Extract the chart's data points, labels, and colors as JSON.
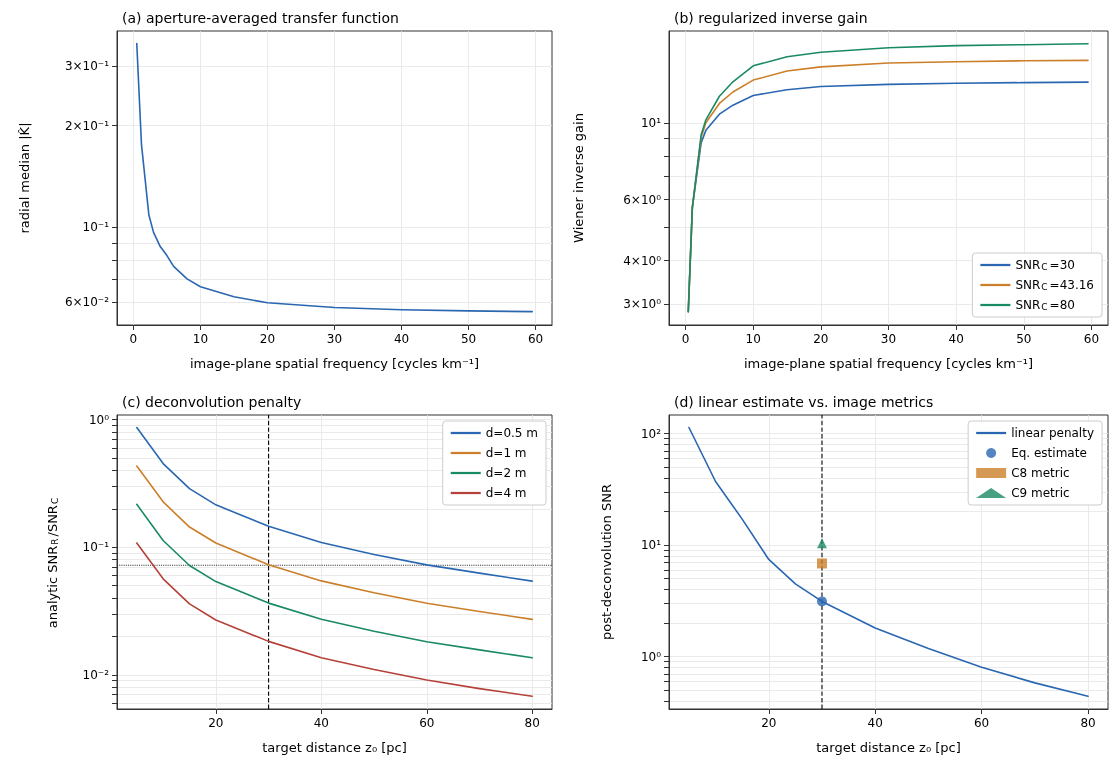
{
  "chart_data": [
    {
      "type": "line",
      "title": "(a) aperture-averaged transfer function",
      "xlabel": "image-plane spatial frequency [cycles km⁻¹]",
      "ylabel": "radial median |K̂|",
      "log": "y",
      "grid": true,
      "xlim": [
        -2.45,
        62.45
      ],
      "xticks": [
        0,
        10,
        20,
        30,
        40,
        50,
        60
      ],
      "ylim": [
        0.0514,
        0.381
      ],
      "yticks": [
        {
          "value": 0.06,
          "label": "6×10⁻²"
        },
        {
          "value": 0.07,
          "label": null
        },
        {
          "value": 0.08,
          "label": null
        },
        {
          "value": 0.09,
          "label": null
        },
        {
          "value": 0.1,
          "label": "10⁻¹"
        },
        {
          "value": 0.2,
          "label": "2×10⁻¹"
        },
        {
          "value": 0.3,
          "label": "3×10⁻¹"
        }
      ],
      "series": [
        {
          "color": "#2a67b1",
          "x": [
            0.5,
            1.2,
            2.3,
            3,
            4,
            5,
            6,
            8,
            10,
            15,
            20,
            30,
            40,
            50,
            59.5
          ],
          "values": [
            0.35,
            0.176,
            0.109,
            0.0966,
            0.0877,
            0.0825,
            0.0766,
            0.0704,
            0.0667,
            0.0623,
            0.0598,
            0.0579,
            0.057,
            0.0566,
            0.0563
          ]
        }
      ]
    },
    {
      "type": "line",
      "title": "(b) regularized inverse gain",
      "xlabel": "image-plane spatial frequency [cycles km⁻¹]",
      "ylabel": "Wiener inverse gain",
      "log": "y",
      "grid": true,
      "legend": "bottom right",
      "xlim": [
        -2.45,
        62.45
      ],
      "xticks": [
        0,
        10,
        20,
        30,
        40,
        50,
        60
      ],
      "ylim": [
        2.61,
        18.4
      ],
      "yticks": [
        {
          "value": 3,
          "label": "3×10⁰"
        },
        {
          "value": 4,
          "label": "4×10⁰"
        },
        {
          "value": 5,
          "label": null
        },
        {
          "value": 6,
          "label": "6×10⁰"
        },
        {
          "value": 7,
          "label": null
        },
        {
          "value": 8,
          "label": null
        },
        {
          "value": 9,
          "label": null
        },
        {
          "value": 10,
          "label": "10¹"
        }
      ],
      "series": [
        {
          "name": "SNR$_{C}$=30",
          "color": "#2a67b1",
          "x": [
            0.4,
            1,
            2.3,
            3,
            5,
            7,
            10,
            15,
            20,
            30,
            40,
            50,
            59.5
          ],
          "values": [
            2.85,
            5.69,
            8.75,
            9.51,
            10.59,
            11.24,
            11.99,
            12.45,
            12.73,
            12.91,
            13.0,
            13.06,
            13.1
          ]
        },
        {
          "name": "SNR$_{C}$=43.16",
          "color": "#cc7f29",
          "x": [
            0.4,
            1,
            2.3,
            3,
            5,
            7,
            10,
            15,
            20,
            30,
            40,
            50,
            59.5
          ],
          "values": [
            2.85,
            5.69,
            9.07,
            10.0,
            11.37,
            12.27,
            13.28,
            14.1,
            14.5,
            14.87,
            15.0,
            15.1,
            15.14
          ]
        },
        {
          "name": "SNR$_{C}$=80",
          "color": "#1a8a64",
          "x": [
            0.4,
            1,
            2.3,
            3,
            5,
            7,
            10,
            15,
            20,
            30,
            40,
            50,
            59.5
          ],
          "values": [
            2.85,
            5.69,
            9.22,
            10.2,
            11.93,
            13.13,
            14.6,
            15.5,
            15.97,
            16.47,
            16.7,
            16.8,
            16.9
          ]
        }
      ]
    },
    {
      "type": "line",
      "title": "(c) deconvolution penalty",
      "xlabel": "target distance z₀ [pc]",
      "ylabel": "analytic SNR$_{R}$/SNR$_{C}$",
      "log": "y",
      "grid": true,
      "legend": "top right",
      "xlim": [
        1.25,
        83.75
      ],
      "xticks": [
        20,
        40,
        60,
        80
      ],
      "ylim": [
        0.0054,
        1.088
      ],
      "yticks": [
        {
          "value": 0.006,
          "label": null
        },
        {
          "value": 0.007,
          "label": null
        },
        {
          "value": 0.008,
          "label": null
        },
        {
          "value": 0.009,
          "label": null
        },
        {
          "value": 0.01,
          "label": "10⁻²"
        },
        {
          "value": 0.02,
          "label": null
        },
        {
          "value": 0.03,
          "label": null
        },
        {
          "value": 0.04,
          "label": null
        },
        {
          "value": 0.05,
          "label": null
        },
        {
          "value": 0.06,
          "label": null
        },
        {
          "value": 0.07,
          "label": null
        },
        {
          "value": 0.08,
          "label": null
        },
        {
          "value": 0.09,
          "label": null
        },
        {
          "value": 0.1,
          "label": "10⁻¹"
        },
        {
          "value": 0.2,
          "label": null
        },
        {
          "value": 0.3,
          "label": null
        },
        {
          "value": 0.4,
          "label": null
        },
        {
          "value": 0.5,
          "label": null
        },
        {
          "value": 0.6,
          "label": null
        },
        {
          "value": 0.7,
          "label": null
        },
        {
          "value": 0.8,
          "label": null
        },
        {
          "value": 0.9,
          "label": null
        },
        {
          "value": 1,
          "label": "10⁰"
        }
      ],
      "ref_lines": [
        {
          "axis": "x",
          "value": 30,
          "line_style": "dashed",
          "color": "#000000"
        },
        {
          "axis": "y",
          "value": 0.0723,
          "line_style": "dotted",
          "color": "#333333"
        }
      ],
      "series": [
        {
          "name": "d=0.5 m",
          "color": "#2a67b1",
          "x": [
            5,
            10,
            15,
            20,
            30,
            40,
            50,
            60,
            70,
            80
          ],
          "values": [
            0.867,
            0.453,
            0.288,
            0.215,
            0.146,
            0.109,
            0.0879,
            0.0728,
            0.0627,
            0.0543
          ]
        },
        {
          "name": "d=1 m",
          "color": "#cc7f29",
          "x": [
            5,
            10,
            15,
            20,
            30,
            40,
            50,
            60,
            70,
            80
          ],
          "values": [
            0.433,
            0.227,
            0.144,
            0.108,
            0.073,
            0.0545,
            0.044,
            0.0364,
            0.0314,
            0.0272
          ]
        },
        {
          "name": "d=2 m",
          "color": "#1a8a64",
          "x": [
            5,
            10,
            15,
            20,
            30,
            40,
            50,
            60,
            70,
            80
          ],
          "values": [
            0.217,
            0.113,
            0.072,
            0.0538,
            0.0365,
            0.0273,
            0.022,
            0.0182,
            0.0157,
            0.0136
          ]
        },
        {
          "name": "d=4 m",
          "color": "#b5423a",
          "x": [
            5,
            10,
            15,
            20,
            30,
            40,
            50,
            60,
            70,
            80
          ],
          "values": [
            0.108,
            0.0566,
            0.036,
            0.0269,
            0.0183,
            0.0136,
            0.011,
            0.0091,
            0.0078,
            0.0068
          ]
        }
      ]
    },
    {
      "type": "line",
      "title": "(d) linear estimate vs. image metrics",
      "xlabel": "target distance z₀ [pc]",
      "ylabel": "post-deconvolution SNR",
      "log": "y",
      "grid": true,
      "legend": "top right",
      "xlim": [
        1.25,
        83.75
      ],
      "xticks": [
        20,
        40,
        60,
        80
      ],
      "ylim": [
        0.338,
        147
      ],
      "yticks": [
        {
          "value": 0.4,
          "label": null
        },
        {
          "value": 0.5,
          "label": null
        },
        {
          "value": 0.6,
          "label": null
        },
        {
          "value": 0.7,
          "label": null
        },
        {
          "value": 0.8,
          "label": null
        },
        {
          "value": 0.9,
          "label": null
        },
        {
          "value": 1,
          "label": "10⁰"
        },
        {
          "value": 2,
          "label": null
        },
        {
          "value": 3,
          "label": null
        },
        {
          "value": 4,
          "label": null
        },
        {
          "value": 5,
          "label": null
        },
        {
          "value": 6,
          "label": null
        },
        {
          "value": 7,
          "label": null
        },
        {
          "value": 8,
          "label": null
        },
        {
          "value": 9,
          "label": null
        },
        {
          "value": 10,
          "label": "10¹"
        },
        {
          "value": 20,
          "label": null
        },
        {
          "value": 30,
          "label": null
        },
        {
          "value": 40,
          "label": null
        },
        {
          "value": 50,
          "label": null
        },
        {
          "value": 60,
          "label": null
        },
        {
          "value": 70,
          "label": null
        },
        {
          "value": 80,
          "label": null
        },
        {
          "value": 90,
          "label": null
        },
        {
          "value": 100,
          "label": "10²"
        }
      ],
      "ref_lines": [
        {
          "axis": "x",
          "value": 30,
          "line_style": "dashed",
          "color": "#000000"
        }
      ],
      "series": [
        {
          "name": "linear penalty",
          "color": "#2a67b1",
          "x": [
            5,
            10,
            15,
            20,
            25,
            30,
            40,
            50,
            60,
            70,
            80
          ],
          "values": [
            113.5,
            37.2,
            17.1,
            7.43,
            4.48,
            3.12,
            1.8,
            1.18,
            0.8,
            0.58,
            0.44
          ]
        },
        {
          "name": "Eq. estimate",
          "type": "scatter",
          "marker": "circle",
          "color": "#2a67b1",
          "x": [
            30
          ],
          "values": [
            3.12
          ]
        },
        {
          "name": "C8 metric",
          "type": "scatter",
          "marker": "square",
          "color": "#cc7f29",
          "x": [
            30
          ],
          "values": [
            6.84
          ]
        },
        {
          "name": "C9 metric",
          "type": "scatter",
          "marker": "triangle",
          "color": "#1a8a64",
          "x": [
            30
          ],
          "values": [
            10.4
          ]
        }
      ]
    }
  ]
}
